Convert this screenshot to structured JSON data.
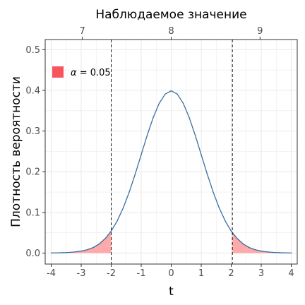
{
  "chart_data": {
    "type": "area",
    "title": "",
    "xlabel": "t",
    "ylabel": "Плотность вероятности",
    "x2label": "Наблюдаемое значение",
    "xlim": [
      -4.0,
      4.0
    ],
    "ylim": [
      0,
      0.5
    ],
    "x_ticks": [
      -4,
      -3,
      -2,
      -1,
      0,
      1,
      2,
      3,
      4
    ],
    "x_tick_labels": [
      "-4",
      "-3",
      "-2",
      "-1",
      "0",
      "1",
      "2",
      "3",
      "4"
    ],
    "y_ticks": [
      0.0,
      0.1,
      0.2,
      0.3,
      0.4,
      0.5
    ],
    "y_tick_labels": [
      "0.0",
      "0.1",
      "0.2",
      "0.3",
      "0.4",
      "0.5"
    ],
    "x2_ticks": [
      -2.96,
      0.0,
      2.96
    ],
    "x2_tick_labels": [
      "7",
      "8",
      "9"
    ],
    "critical_values": [
      -2.0,
      2.04
    ],
    "grid": true,
    "legend_position": "top-left",
    "legend": {
      "symbol": "α",
      "text": " = 0.05"
    },
    "series": [
      {
        "x": [
          -4.0,
          -3.8,
          -3.6,
          -3.4,
          -3.2,
          -3.0,
          -2.8,
          -2.6,
          -2.4,
          -2.2,
          -2.0,
          -1.8,
          -1.6,
          -1.4,
          -1.2,
          -1.0,
          -0.8,
          -0.6,
          -0.4,
          -0.2,
          0.0,
          0.2,
          0.4,
          0.6,
          0.8,
          1.0,
          1.2,
          1.4,
          1.6,
          1.8,
          2.0,
          2.2,
          2.4,
          2.6,
          2.8,
          3.0,
          3.2,
          3.4,
          3.6,
          3.8,
          4.0
        ],
        "y": [
          0.0003,
          0.0005,
          0.0009,
          0.0016,
          0.0029,
          0.0048,
          0.0081,
          0.0136,
          0.0224,
          0.0357,
          0.054,
          0.079,
          0.111,
          0.1497,
          0.1942,
          0.242,
          0.2897,
          0.3332,
          0.3683,
          0.391,
          0.3989,
          0.391,
          0.3683,
          0.3332,
          0.2897,
          0.242,
          0.1942,
          0.1497,
          0.111,
          0.079,
          0.054,
          0.0357,
          0.0224,
          0.0136,
          0.0081,
          0.0048,
          0.0029,
          0.0016,
          0.0009,
          0.0005,
          0.0003
        ]
      }
    ],
    "colors": {
      "curve": "#3a6fa0",
      "shade": "#ffaaaa",
      "legend_key": "#f8545e",
      "grid": "#ebebeb"
    }
  }
}
